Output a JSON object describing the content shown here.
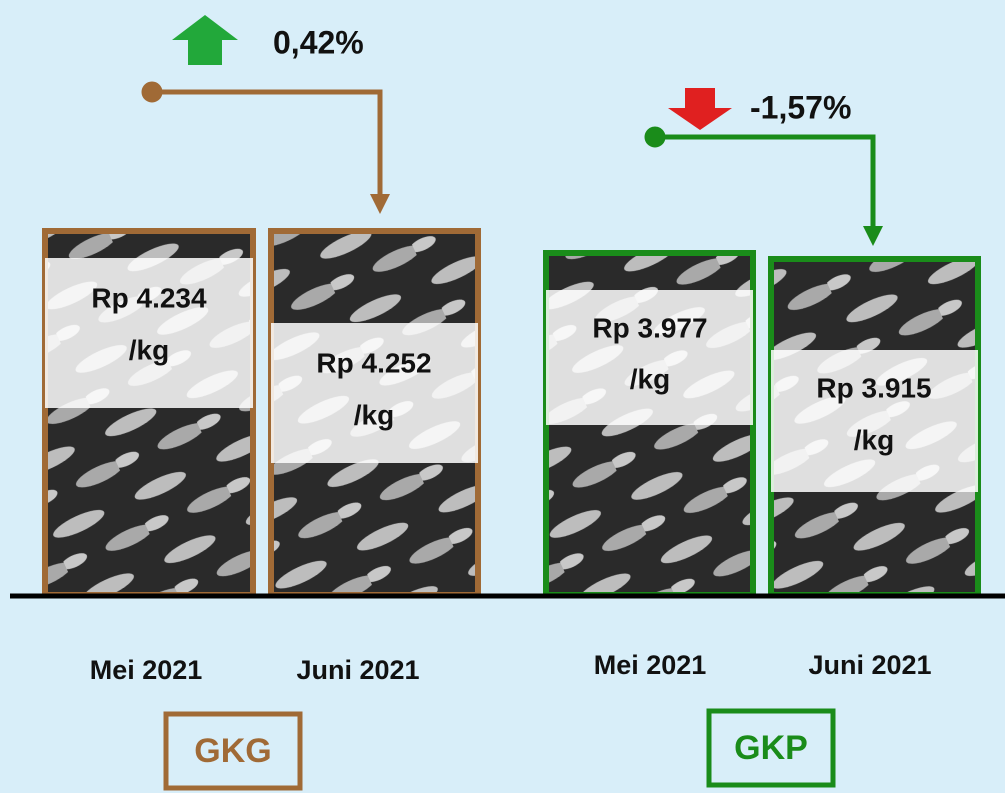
{
  "groups": [
    {
      "label": "GKG",
      "change": "0,42%",
      "items": [
        {
          "month": "Mei 2021",
          "price": "Rp 4.234",
          "unit": "/kg"
        },
        {
          "month": "Juni 2021",
          "price": "Rp 4.252",
          "unit": "/kg"
        }
      ]
    },
    {
      "label": "GKP",
      "change": "-1,57%",
      "items": [
        {
          "month": "Mei 2021",
          "price": "Rp 3.977",
          "unit": "/kg"
        },
        {
          "month": "Juni 2021",
          "price": "Rp 3.915",
          "unit": "/kg"
        }
      ]
    }
  ]
}
